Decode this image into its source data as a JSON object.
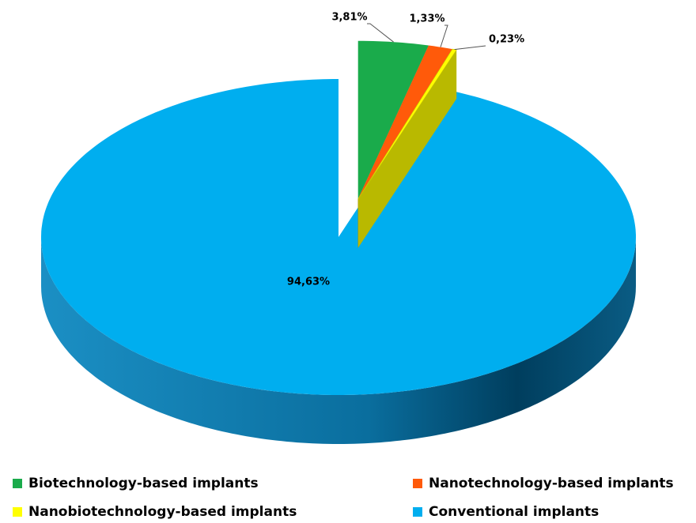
{
  "chart_data": {
    "type": "pie",
    "categories": [
      "Biotechnology-based implants",
      "Nanotechnology-based implants",
      "Nanobiotechnology-based implants",
      "Conventional implants"
    ],
    "values": [
      3.81,
      1.33,
      0.23,
      94.63
    ],
    "value_labels": [
      "3,81%",
      "1,33%",
      "0,23%",
      "94,63%"
    ],
    "colors": [
      "#1aab4b",
      "#ff5a0a",
      "#ffff00",
      "#00aeef"
    ]
  }
}
